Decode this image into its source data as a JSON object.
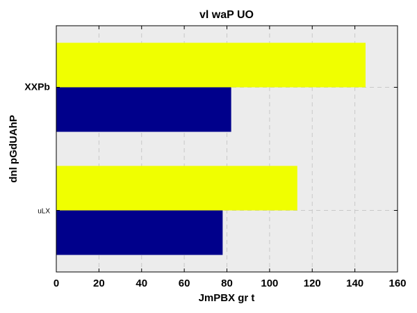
{
  "chart_data": {
    "type": "bar",
    "orientation": "horizontal",
    "title": "vl waP UO",
    "xlabel": "JmPBX gr  t",
    "ylabel": "dnl pGdUAhP",
    "categories": [
      "uLX",
      "XXPb"
    ],
    "series": [
      {
        "color": "#00008b",
        "values": [
          78,
          82
        ]
      },
      {
        "color": "#f0ff00",
        "values": [
          113,
          145
        ]
      }
    ],
    "xlim": [
      0,
      160
    ],
    "xticks": [
      0,
      20,
      40,
      60,
      80,
      100,
      120,
      140,
      160
    ],
    "grid": true,
    "background": "#ececec"
  }
}
